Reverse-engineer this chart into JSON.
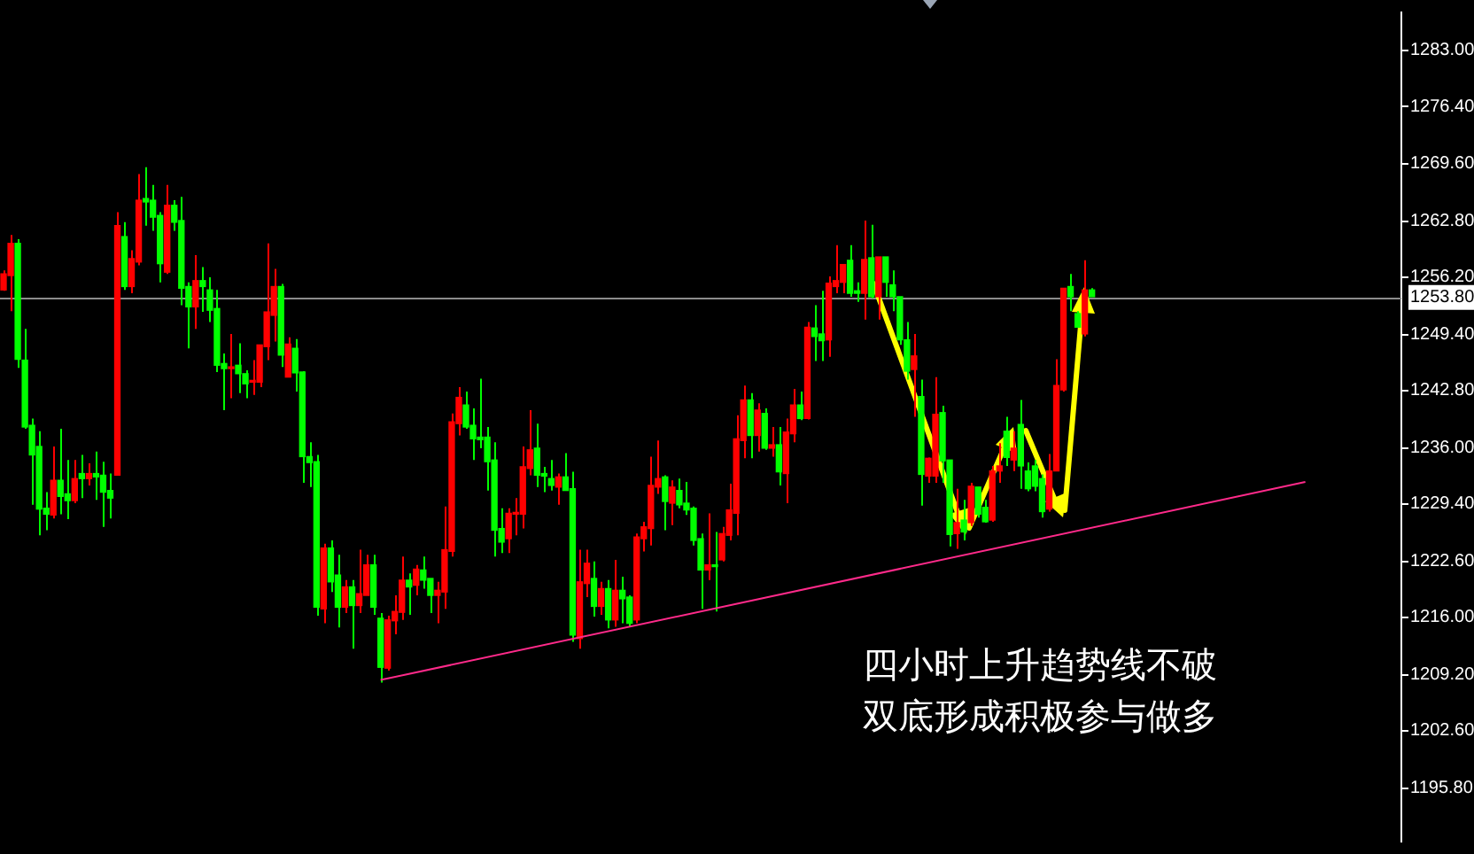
{
  "chart_data": {
    "type": "candlestick",
    "categories": [
      null,
      null,
      null,
      null,
      null,
      null,
      null,
      null,
      null,
      null,
      null,
      null,
      null,
      null,
      null,
      null,
      null,
      null,
      null,
      null,
      null,
      null,
      null,
      null,
      null,
      null,
      null,
      null,
      null,
      null,
      null,
      null,
      null,
      null,
      null,
      null,
      null,
      null,
      null,
      null,
      null,
      null,
      null,
      null,
      null,
      null,
      null,
      null,
      null,
      null,
      null,
      null,
      null,
      null,
      null,
      null,
      null,
      null,
      null,
      null,
      null,
      null,
      null,
      null,
      null,
      null,
      null,
      null,
      null,
      null,
      null,
      null,
      null,
      null,
      null,
      null,
      null,
      null,
      null,
      null,
      null,
      null,
      null,
      null,
      null,
      null,
      null,
      null,
      null,
      null,
      null,
      null,
      null,
      null,
      null,
      null,
      null,
      null,
      null,
      null,
      null,
      null,
      null,
      null,
      null,
      null,
      null,
      null,
      null,
      null,
      null,
      null,
      null,
      null,
      null,
      null,
      null,
      null,
      null,
      null,
      null,
      null,
      null,
      null,
      null,
      null,
      null,
      null,
      null,
      null,
      null,
      null,
      null,
      null,
      null,
      null,
      null,
      null,
      null,
      null,
      null,
      null,
      null,
      null,
      null,
      null,
      null,
      null,
      null,
      null,
      null,
      null,
      null,
      null,
      null,
      null,
      null,
      null,
      null,
      null,
      null,
      null,
      null,
      null,
      null,
      null,
      null,
      null,
      null,
      null,
      null,
      null,
      null,
      null,
      null,
      null,
      null,
      null,
      null,
      null,
      null,
      null,
      null,
      null,
      null,
      null,
      null,
      null,
      null,
      null,
      null,
      null,
      null,
      null,
      null,
      null,
      null
    ],
    "ohlc": [
      [
        1254.7,
        1257.0,
        1254.6,
        1256.6
      ],
      [
        1256.4,
        1261.2,
        1252.2,
        1260.2
      ],
      [
        1260.2,
        1260.7,
        1245.5,
        1246.5
      ],
      [
        1246.4,
        1250.1,
        1238.3,
        1238.5
      ],
      [
        1238.7,
        1239.5,
        1229.3,
        1235.2
      ],
      [
        1236.2,
        1238.0,
        1225.7,
        1228.8
      ],
      [
        1228.9,
        1230.8,
        1226.3,
        1228.2
      ],
      [
        1228.1,
        1236.2,
        1227.7,
        1232.2
      ],
      [
        1232.2,
        1238.3,
        1228.2,
        1230.3
      ],
      [
        1230.6,
        1234.6,
        1227.6,
        1229.8
      ],
      [
        1229.8,
        1234.6,
        1229.5,
        1232.4
      ],
      [
        1233.0,
        1235.2,
        1230.1,
        1232.4
      ],
      [
        1232.4,
        1234.2,
        1231.6,
        1233.0
      ],
      [
        1233.0,
        1235.6,
        1229.9,
        1232.6
      ],
      [
        1232.8,
        1234.4,
        1226.7,
        1230.8
      ],
      [
        1231.0,
        1233.0,
        1227.7,
        1230.1
      ],
      [
        1232.8,
        1263.9,
        1232.8,
        1262.3
      ],
      [
        1261.0,
        1262.7,
        1254.7,
        1255.1
      ],
      [
        1255.1,
        1259.4,
        1254.3,
        1258.4
      ],
      [
        1258.0,
        1268.4,
        1257.6,
        1265.3
      ],
      [
        1265.5,
        1269.2,
        1262.3,
        1265.1
      ],
      [
        1265.3,
        1267.1,
        1261.7,
        1263.3
      ],
      [
        1263.5,
        1263.9,
        1255.6,
        1257.8
      ],
      [
        1256.8,
        1267.1,
        1256.6,
        1264.7
      ],
      [
        1264.7,
        1265.3,
        1261.7,
        1262.7
      ],
      [
        1262.9,
        1265.7,
        1252.9,
        1254.9
      ],
      [
        1255.1,
        1255.6,
        1247.8,
        1252.7
      ],
      [
        1252.7,
        1258.8,
        1250.1,
        1255.8
      ],
      [
        1255.8,
        1257.4,
        1252.1,
        1255.1
      ],
      [
        1254.7,
        1256.2,
        1250.9,
        1252.3
      ],
      [
        1252.5,
        1254.7,
        1245.0,
        1245.8
      ],
      [
        1246.0,
        1247.2,
        1240.5,
        1245.4
      ],
      [
        1245.4,
        1249.5,
        1241.9,
        1245.6
      ],
      [
        1245.8,
        1248.4,
        1242.5,
        1244.8
      ],
      [
        1244.8,
        1245.2,
        1241.9,
        1243.6
      ],
      [
        1243.8,
        1246.4,
        1242.3,
        1244.0
      ],
      [
        1243.8,
        1248.2,
        1243.2,
        1248.2
      ],
      [
        1248.0,
        1260.2,
        1246.4,
        1252.1
      ],
      [
        1251.7,
        1257.2,
        1248.6,
        1255.1
      ],
      [
        1255.1,
        1255.4,
        1245.6,
        1247.0
      ],
      [
        1244.4,
        1249.1,
        1244.4,
        1248.3
      ],
      [
        1247.8,
        1248.9,
        1242.7,
        1244.9
      ],
      [
        1245.0,
        1245.1,
        1231.9,
        1235.0
      ],
      [
        1235.0,
        1236.7,
        1231.4,
        1234.3
      ],
      [
        1234.4,
        1235.2,
        1216.2,
        1217.2
      ],
      [
        1217.0,
        1224.7,
        1215.3,
        1224.2
      ],
      [
        1224.2,
        1225.1,
        1219.0,
        1220.2
      ],
      [
        1221.0,
        1223.4,
        1214.8,
        1217.2
      ],
      [
        1217.2,
        1220.4,
        1216.5,
        1219.6
      ],
      [
        1219.6,
        1220.4,
        1212.3,
        1217.4
      ],
      [
        1217.4,
        1224.0,
        1216.5,
        1218.8
      ],
      [
        1218.6,
        1223.4,
        1218.6,
        1222.2
      ],
      [
        1222.2,
        1223.4,
        1216.3,
        1217.2
      ],
      [
        1215.9,
        1216.5,
        1208.3,
        1210.1
      ],
      [
        1210.0,
        1216.2,
        1209.7,
        1215.7
      ],
      [
        1215.6,
        1218.6,
        1214.0,
        1216.7
      ],
      [
        1216.6,
        1223.2,
        1215.7,
        1220.4
      ],
      [
        1220.4,
        1221.2,
        1216.3,
        1219.6
      ],
      [
        1219.8,
        1222.2,
        1218.6,
        1221.7
      ],
      [
        1221.6,
        1223.2,
        1219.4,
        1220.4
      ],
      [
        1220.6,
        1220.6,
        1216.5,
        1218.6
      ],
      [
        1218.6,
        1220.2,
        1215.3,
        1219.2
      ],
      [
        1219.0,
        1229.1,
        1217.0,
        1224.0
      ],
      [
        1223.8,
        1240.1,
        1223.2,
        1239.1
      ],
      [
        1238.9,
        1243.2,
        1237.5,
        1242.0
      ],
      [
        1241.1,
        1242.7,
        1238.3,
        1238.5
      ],
      [
        1238.7,
        1240.7,
        1234.6,
        1237.1
      ],
      [
        1237.3,
        1244.2,
        1236.0,
        1237.0
      ],
      [
        1237.3,
        1238.5,
        1231.0,
        1234.4
      ],
      [
        1234.6,
        1236.7,
        1223.2,
        1226.3
      ],
      [
        1226.5,
        1228.9,
        1223.6,
        1224.9
      ],
      [
        1225.3,
        1228.9,
        1223.6,
        1228.3
      ],
      [
        1228.2,
        1230.1,
        1225.7,
        1228.4
      ],
      [
        1228.2,
        1236.2,
        1226.5,
        1233.8
      ],
      [
        1233.6,
        1240.5,
        1232.8,
        1235.8
      ],
      [
        1236.0,
        1238.9,
        1231.4,
        1232.8
      ],
      [
        1233.0,
        1233.8,
        1230.8,
        1232.7
      ],
      [
        1232.4,
        1234.6,
        1231.0,
        1231.6
      ],
      [
        1231.4,
        1233.0,
        1229.3,
        1232.6
      ],
      [
        1232.6,
        1235.4,
        1231.0,
        1231.0
      ],
      [
        1231.2,
        1233.2,
        1213.1,
        1213.9
      ],
      [
        1213.5,
        1224.0,
        1212.3,
        1220.2
      ],
      [
        1220.0,
        1224.0,
        1218.4,
        1222.4
      ],
      [
        1220.6,
        1222.6,
        1216.1,
        1217.3
      ],
      [
        1217.3,
        1220.2,
        1216.3,
        1219.4
      ],
      [
        1219.4,
        1220.4,
        1214.7,
        1215.7
      ],
      [
        1215.7,
        1222.8,
        1214.9,
        1219.2
      ],
      [
        1219.2,
        1220.8,
        1215.3,
        1218.2
      ],
      [
        1218.4,
        1218.6,
        1214.9,
        1215.3
      ],
      [
        1215.7,
        1225.9,
        1215.3,
        1225.5
      ],
      [
        1225.3,
        1227.3,
        1223.8,
        1226.7
      ],
      [
        1226.5,
        1235.0,
        1224.5,
        1231.6
      ],
      [
        1231.4,
        1236.9,
        1230.6,
        1232.4
      ],
      [
        1232.6,
        1232.8,
        1226.3,
        1229.7
      ],
      [
        1229.5,
        1232.2,
        1226.9,
        1231.4
      ],
      [
        1231.0,
        1232.4,
        1228.9,
        1229.3
      ],
      [
        1229.5,
        1232.0,
        1228.1,
        1228.7
      ],
      [
        1228.9,
        1229.1,
        1224.5,
        1225.1
      ],
      [
        1225.3,
        1225.9,
        1217.0,
        1221.6
      ],
      [
        1221.6,
        1228.3,
        1220.4,
        1222.2
      ],
      [
        1222.2,
        1226.1,
        1216.7,
        1222.0
      ],
      [
        1222.8,
        1226.7,
        1222.6,
        1225.9
      ],
      [
        1225.7,
        1231.8,
        1225.1,
        1228.7
      ],
      [
        1228.3,
        1239.9,
        1225.7,
        1237.1
      ],
      [
        1236.9,
        1243.4,
        1234.8,
        1241.7
      ],
      [
        1241.7,
        1242.5,
        1234.8,
        1237.5
      ],
      [
        1237.5,
        1241.3,
        1235.6,
        1240.5
      ],
      [
        1240.1,
        1240.7,
        1235.8,
        1236.0
      ],
      [
        1236.0,
        1238.5,
        1235.0,
        1236.4
      ],
      [
        1236.4,
        1238.5,
        1231.6,
        1233.2
      ],
      [
        1233.0,
        1239.5,
        1229.5,
        1237.9
      ],
      [
        1237.7,
        1243.0,
        1236.7,
        1241.1
      ],
      [
        1241.1,
        1242.7,
        1239.3,
        1239.5
      ],
      [
        1239.5,
        1250.9,
        1239.4,
        1250.3
      ],
      [
        1250.2,
        1252.9,
        1246.3,
        1249.2
      ],
      [
        1249.5,
        1254.6,
        1246.3,
        1248.7
      ],
      [
        1248.8,
        1256.3,
        1246.8,
        1255.5
      ],
      [
        1255.1,
        1260.0,
        1254.3,
        1255.8
      ],
      [
        1255.6,
        1257.7,
        1254.3,
        1257.7
      ],
      [
        1258.2,
        1260.0,
        1253.9,
        1254.3
      ],
      [
        1254.6,
        1255.6,
        1253.3,
        1254.3
      ],
      [
        1254.3,
        1262.9,
        1251.2,
        1258.3
      ],
      [
        1258.5,
        1262.4,
        1253.7,
        1253.9
      ],
      [
        1253.9,
        1258.6,
        1251.2,
        1258.6
      ],
      [
        1258.6,
        1258.6,
        1253.9,
        1255.6
      ],
      [
        1255.3,
        1257.0,
        1252.2,
        1253.9
      ],
      [
        1253.9,
        1253.9,
        1248.2,
        1248.8
      ],
      [
        1248.8,
        1250.9,
        1244.1,
        1245.1
      ],
      [
        1245.3,
        1249.5,
        1239.7,
        1246.9
      ],
      [
        1242.1,
        1244.1,
        1229.2,
        1232.9
      ],
      [
        1232.7,
        1234.9,
        1231.9,
        1234.8
      ],
      [
        1232.7,
        1244.4,
        1231.9,
        1240.0
      ],
      [
        1240.2,
        1241.0,
        1231.9,
        1234.5
      ],
      [
        1234.6,
        1234.6,
        1224.4,
        1225.8
      ],
      [
        1225.9,
        1231.2,
        1224.1,
        1227.2
      ],
      [
        1227.5,
        1229.9,
        1225.1,
        1226.1
      ],
      [
        1227.2,
        1231.9,
        1226.8,
        1231.5
      ],
      [
        1231.4,
        1231.4,
        1227.8,
        1228.2
      ],
      [
        1229.0,
        1229.9,
        1227.2,
        1227.3
      ],
      [
        1227.5,
        1233.9,
        1227.3,
        1233.3
      ],
      [
        1233.3,
        1236.6,
        1231.9,
        1233.9
      ],
      [
        1238.0,
        1239.7,
        1233.9,
        1234.9
      ],
      [
        1234.6,
        1238.0,
        1233.3,
        1236.0
      ],
      [
        1238.8,
        1241.7,
        1231.2,
        1233.9
      ],
      [
        1233.3,
        1234.3,
        1230.9,
        1231.2
      ],
      [
        1233.9,
        1234.6,
        1230.9,
        1231.5
      ],
      [
        1232.4,
        1232.9,
        1227.8,
        1228.5
      ],
      [
        1228.8,
        1235.3,
        1228.5,
        1233.3
      ],
      [
        1233.3,
        1246.5,
        1233.3,
        1243.4
      ],
      [
        1242.9,
        1254.9,
        1242.7,
        1254.9
      ],
      [
        1255.1,
        1256.6,
        1252.2,
        1253.9
      ],
      [
        1251.9,
        1252.2,
        1250.3,
        1250.3
      ],
      [
        1249.5,
        1258.2,
        1249.2,
        1254.7
      ],
      [
        1254.7,
        1254.9,
        1253.9,
        1253.9
      ],
      null,
      null,
      null,
      null,
      null,
      null,
      null,
      null,
      null,
      null,
      null,
      null,
      null,
      null,
      null,
      null,
      null,
      null,
      null,
      null,
      null,
      null,
      null,
      null,
      null,
      null,
      null,
      null,
      null,
      null,
      null,
      null,
      null,
      null,
      null,
      null,
      null,
      null,
      null,
      null,
      null,
      null,
      null
    ],
    "colors": [
      "#ff0000",
      "#ff0000",
      "#00ff00",
      "#00ff00",
      "#00ff00",
      "#00ff00",
      "#00ff00",
      "#ff0000",
      "#00ff00",
      "#00ff00",
      "#ff0000",
      "#00ff00",
      "#ff0000",
      "#00ff00",
      "#00ff00",
      "#00ff00",
      "#ff0000",
      "#00ff00",
      "#ff0000",
      "#ff0000",
      "#00ff00",
      "#00ff00",
      "#00ff00",
      "#ff0000",
      "#00ff00",
      "#00ff00",
      "#00ff00",
      "#ff0000",
      "#00ff00",
      "#00ff00",
      "#00ff00",
      "#00ff00",
      "#ff0000",
      "#00ff00",
      "#00ff00",
      "#ff0000",
      "#ff0000",
      "#ff0000",
      "#ff0000",
      "#00ff00",
      "#ff0000",
      "#00ff00",
      "#00ff00",
      "#00ff00",
      "#00ff00",
      "#ff0000",
      "#00ff00",
      "#00ff00",
      "#ff0000",
      "#00ff00",
      "#ff0000",
      "#ff0000",
      "#00ff00",
      "#00ff00",
      "#ff0000",
      "#ff0000",
      "#ff0000",
      "#00ff00",
      "#ff0000",
      "#00ff00",
      "#00ff00",
      "#ff0000",
      "#ff0000",
      "#ff0000",
      "#ff0000",
      "#00ff00",
      "#00ff00",
      "#00ff00",
      "#00ff00",
      "#00ff00",
      "#00ff00",
      "#ff0000",
      "#ff0000",
      "#ff0000",
      "#ff0000",
      "#00ff00",
      "#00ff00",
      "#00ff00",
      "#ff0000",
      "#00ff00",
      "#00ff00",
      "#ff0000",
      "#ff0000",
      "#00ff00",
      "#ff0000",
      "#00ff00",
      "#ff0000",
      "#00ff00",
      "#00ff00",
      "#ff0000",
      "#ff0000",
      "#ff0000",
      "#ff0000",
      "#00ff00",
      "#ff0000",
      "#00ff00",
      "#00ff00",
      "#00ff00",
      "#00ff00",
      "#ff0000",
      "#00ff00",
      "#ff0000",
      "#ff0000",
      "#ff0000",
      "#ff0000",
      "#00ff00",
      "#ff0000",
      "#00ff00",
      "#ff0000",
      "#00ff00",
      "#ff0000",
      "#ff0000",
      "#00ff00",
      "#ff0000",
      "#00ff00",
      "#00ff00",
      "#ff0000",
      "#ff0000",
      "#ff0000",
      "#00ff00",
      "#00ff00",
      "#ff0000",
      "#00ff00",
      "#ff0000",
      "#00ff00",
      "#00ff00",
      "#00ff00",
      "#00ff00",
      "#ff0000",
      "#00ff00",
      "#ff0000",
      "#ff0000",
      "#00ff00",
      "#00ff00",
      "#ff0000",
      "#00ff00",
      "#ff0000",
      "#00ff00",
      "#00ff00",
      "#ff0000",
      "#ff0000",
      "#00ff00",
      "#ff0000",
      "#00ff00",
      "#00ff00",
      "#00ff00",
      "#00ff00",
      "#ff0000",
      "#ff0000",
      "#ff0000",
      "#00ff00",
      "#00ff00",
      "#ff0000",
      "#00ff00",
      null,
      null,
      null,
      null,
      null,
      null,
      null,
      null,
      null,
      null,
      null,
      null,
      null,
      null,
      null,
      null,
      null,
      null,
      null,
      null,
      null,
      null,
      null,
      null,
      null,
      null,
      null,
      null,
      null,
      null,
      null,
      null,
      null,
      null,
      null,
      null,
      null,
      null,
      null,
      null,
      null,
      null,
      null
    ],
    "series": [
      {
        "type": "line",
        "color": "#ff2a8a",
        "values": [
          null,
          null,
          null,
          null,
          null,
          null,
          null,
          null,
          null,
          null,
          null,
          null,
          null,
          null,
          null,
          null,
          null,
          null,
          null,
          null,
          null,
          null,
          null,
          null,
          null,
          null,
          null,
          null,
          null,
          null,
          null,
          null,
          null,
          null,
          null,
          null,
          null,
          null,
          null,
          null,
          null,
          null,
          null,
          null,
          null,
          null,
          null,
          null,
          null,
          null,
          null,
          null,
          null,
          1208.6,
          null,
          null,
          null,
          null,
          null,
          null,
          null,
          null,
          null,
          null,
          null,
          null,
          null,
          null,
          null,
          null,
          null,
          null,
          null,
          null,
          null,
          null,
          null,
          null,
          null,
          null,
          null,
          null,
          null,
          null,
          null,
          null,
          null,
          null,
          null,
          null,
          null,
          null,
          null,
          null,
          null,
          null,
          null,
          null,
          null,
          null,
          null,
          null,
          null,
          null,
          null,
          null,
          null,
          null,
          null,
          null,
          null,
          null,
          null,
          null,
          null,
          null,
          null,
          null,
          null,
          null,
          null,
          null,
          null,
          null,
          null,
          null,
          null,
          null,
          null,
          null,
          null,
          null,
          null,
          null,
          null,
          null,
          null,
          null,
          null,
          null,
          null,
          null,
          null,
          null,
          null,
          null,
          null,
          null,
          null,
          null,
          null,
          null,
          null,
          null,
          null,
          null,
          null,
          null,
          null,
          null,
          null,
          null,
          null,
          null,
          null,
          null,
          null,
          null,
          null,
          null,
          null,
          null,
          null,
          null,
          null,
          null,
          null,
          null,
          null,
          null,
          null,
          null,
          null,
          1232.0,
          null,
          null,
          null,
          null,
          null,
          null,
          null,
          null,
          null,
          null,
          null,
          null,
          null
        ]
      }
    ],
    "ylim": [
      1189.5,
      1287.5
    ],
    "yticks": [
      {
        "value": 1283,
        "label": "1283.00"
      },
      {
        "value": 1276.4,
        "label": "1276.40"
      },
      {
        "value": 1269.6,
        "label": "1269.60"
      },
      {
        "value": 1262.8,
        "label": "1262.80"
      },
      {
        "value": 1256.2,
        "label": "1256.20"
      },
      {
        "value": 1249.4,
        "label": "1249.40"
      },
      {
        "value": 1242.8,
        "label": "1242.80"
      },
      {
        "value": 1236,
        "label": "1236.00"
      },
      {
        "value": 1229.4,
        "label": "1229.40"
      },
      {
        "value": 1222.6,
        "label": "1222.60"
      },
      {
        "value": 1216,
        "label": "1216.00"
      },
      {
        "value": 1209.2,
        "label": "1209.20"
      },
      {
        "value": 1202.6,
        "label": "1202.60"
      },
      {
        "value": 1195.8,
        "label": "1195.80"
      }
    ],
    "tick_labels": "y",
    "grid": false,
    "legend": false,
    "ref_lines": [
      {
        "axis": "y",
        "value": 1253.8,
        "label": "1253.80",
        "color": "#8c8c8c"
      }
    ],
    "annotations": [
      "四小时上升趋势线不破",
      "双底形成积极参与做多"
    ]
  }
}
